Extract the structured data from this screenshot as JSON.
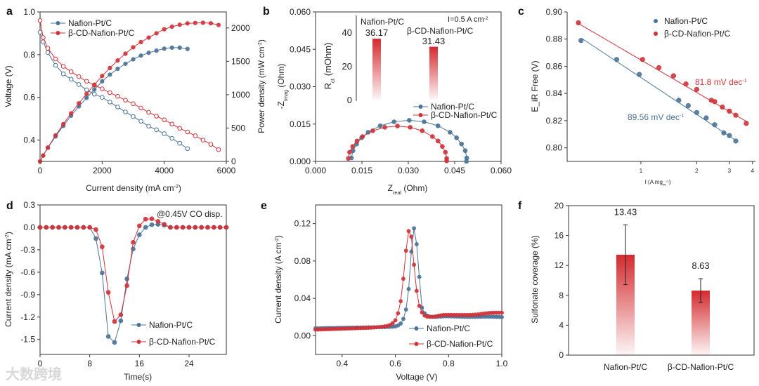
{
  "panel_labels": [
    "a",
    "b",
    "c",
    "d",
    "e",
    "f"
  ],
  "watermark": "大数跨境",
  "colors": {
    "blue": "#4a7397",
    "red": "#d0333a"
  },
  "chart_data": [
    {
      "panel": "a",
      "type": "line",
      "xlabel": [
        "Current density (mA cm",
        {
          "sup": "-2"
        },
        ")"
      ],
      "ylabel": [
        "Voltage (V)"
      ],
      "y2label": [
        "Power density (mW cm",
        {
          "sup": "-2"
        },
        ")"
      ],
      "xlim": [
        0,
        6000
      ],
      "ylim": [
        0.3,
        1.0
      ],
      "y2lim": [
        0,
        2240
      ],
      "xticks": [
        "0",
        "2000",
        "4000",
        "6000"
      ],
      "yticks": [
        "0.4",
        "0.6",
        "0.8",
        "1.0"
      ],
      "y2ticks": [
        "0",
        "500",
        "1000",
        "1500",
        "2000"
      ],
      "legend": "top-left",
      "series": [
        {
          "name": "Nafion-Pt/C",
          "color": "#4a7397",
          "current": [
            0,
            100,
            250,
            500,
            750,
            1000,
            1250,
            1500,
            1750,
            2000,
            2250,
            2500,
            2750,
            3000,
            3250,
            3500,
            3750,
            4000,
            4250,
            4500,
            4750
          ],
          "voltage": [
            0.905,
            0.86,
            0.81,
            0.75,
            0.71,
            0.685,
            0.66,
            0.635,
            0.615,
            0.6,
            0.578,
            0.555,
            0.532,
            0.51,
            0.488,
            0.465,
            0.448,
            0.43,
            0.408,
            0.385,
            0.36
          ],
          "power": [
            0,
            86,
            203,
            375,
            533,
            685,
            825,
            953,
            1076,
            1200,
            1301,
            1388,
            1463,
            1530,
            1586,
            1628,
            1660,
            1690,
            1705,
            1705,
            1685
          ]
        },
        {
          "name": "β-CD-Nafion-Pt/C",
          "color": "#d0333a",
          "current": [
            0,
            100,
            250,
            500,
            750,
            1000,
            1250,
            1500,
            1750,
            2000,
            2250,
            2500,
            2750,
            3000,
            3250,
            3500,
            3750,
            4000,
            4250,
            4500,
            4750,
            5000,
            5250,
            5500,
            5750
          ],
          "voltage": [
            0.96,
            0.88,
            0.83,
            0.78,
            0.745,
            0.72,
            0.697,
            0.675,
            0.657,
            0.64,
            0.622,
            0.605,
            0.587,
            0.57,
            0.55,
            0.53,
            0.512,
            0.495,
            0.475,
            0.455,
            0.438,
            0.42,
            0.4,
            0.38,
            0.355
          ],
          "power": [
            0,
            88,
            208,
            390,
            559,
            720,
            871,
            1013,
            1150,
            1280,
            1400,
            1513,
            1614,
            1710,
            1788,
            1855,
            1920,
            1980,
            2019,
            2048,
            2068,
            2075,
            2078,
            2070,
            2045
          ]
        }
      ]
    },
    {
      "panel": "b",
      "type": "scatter",
      "xlabel": [
        "Z",
        {
          "sub": "real"
        },
        " (Ohm)"
      ],
      "ylabel": [
        "-Z",
        {
          "sub": "Imag"
        },
        " (Ohm)"
      ],
      "xlim": [
        0,
        0.06
      ],
      "ylim": [
        0,
        0.06
      ],
      "xticks": [
        "0.000",
        "0.015",
        "0.030",
        "0.045",
        "0.060"
      ],
      "yticks": [
        "0.000",
        "0.015",
        "0.030",
        "0.045",
        "0.060"
      ],
      "annotation": [
        "I=0.5 A cm",
        {
          "sup": "-2"
        }
      ],
      "legend": "middle-right",
      "series": [
        {
          "name": "Nafion-Pt/C",
          "color": "#4a7397",
          "x": [
            0.0116,
            0.0121,
            0.0133,
            0.0149,
            0.017,
            0.0209,
            0.0254,
            0.0303,
            0.0351,
            0.0396,
            0.0435,
            0.0456,
            0.0472,
            0.0484,
            0.0489,
            0.0488
          ],
          "y": [
            0.0014,
            0.0043,
            0.007,
            0.0095,
            0.0117,
            0.0143,
            0.0159,
            0.0165,
            0.0159,
            0.0143,
            0.0117,
            0.0095,
            0.007,
            0.0043,
            0.0014,
            0.0
          ]
        },
        {
          "name": "β-CD-Nafion-Pt/C",
          "color": "#d0333a",
          "x": [
            0.0106,
            0.011,
            0.012,
            0.0134,
            0.0152,
            0.0185,
            0.0224,
            0.0265,
            0.0306,
            0.0345,
            0.0378,
            0.0396,
            0.041,
            0.042,
            0.0424,
            0.0424
          ],
          "y": [
            0.0012,
            0.0037,
            0.006,
            0.0082,
            0.01,
            0.0123,
            0.0137,
            0.0142,
            0.0137,
            0.0123,
            0.01,
            0.0082,
            0.006,
            0.0037,
            0.0012,
            0.0002
          ]
        }
      ],
      "inset": {
        "type": "bar",
        "ylabel": [
          "R",
          {
            "sub": "ct"
          },
          " (mOhm)"
        ],
        "ylim": [
          0,
          50
        ],
        "yticks": [
          "0",
          "20",
          "40"
        ],
        "categories": [
          "Nafion-Pt/C",
          "β-CD-Nafion-Pt/C"
        ],
        "values": [
          36.17,
          31.43
        ],
        "value_labels": [
          "36.17",
          "31.43"
        ]
      }
    },
    {
      "panel": "c",
      "type": "scatter",
      "xlabel": [
        "I (A mg",
        {
          "sub": "Pt"
        },
        {
          "sup": "-1"
        },
        ")"
      ],
      "ylabel": [
        "E_iR Free (V)"
      ],
      "xscale": "log",
      "xlim": [
        0.4,
        4.15
      ],
      "ylim": [
        0.79,
        0.9
      ],
      "xticks": [
        "1",
        "2",
        "3",
        "4"
      ],
      "yticks": [
        "0.80",
        "0.82",
        "0.84",
        "0.86",
        "0.88",
        "0.90"
      ],
      "legend": "top-right",
      "series": [
        {
          "name": "Nafion-Pt/C",
          "color": "#4a7397",
          "x": [
            0.475,
            0.74,
            0.98,
            1.6,
            1.8,
            2.0,
            2.25,
            2.5,
            2.8,
            3.0,
            3.25
          ],
          "y": [
            0.879,
            0.865,
            0.854,
            0.835,
            0.831,
            0.826,
            0.822,
            0.817,
            0.811,
            0.809,
            0.805
          ],
          "fit": {
            "x": [
              0.48,
              3.25
            ],
            "y": [
              0.8805,
              0.8055
            ]
          },
          "slope_label": [
            "89.56 mV dec",
            {
              "sup": "-1"
            }
          ]
        },
        {
          "name": "β-CD-Nafion-Pt/C",
          "color": "#d0333a",
          "x": [
            0.46,
            1.02,
            1.25,
            1.5,
            1.75,
            2.0,
            2.4,
            2.5,
            2.75,
            3.0,
            3.25,
            3.7
          ],
          "y": [
            0.892,
            0.865,
            0.859,
            0.853,
            0.847,
            0.843,
            0.835,
            0.834,
            0.83,
            0.827,
            0.824,
            0.818
          ],
          "fit": {
            "x": [
              0.46,
              3.75
            ],
            "y": [
              0.8915,
              0.819
            ]
          },
          "slope_label": [
            "81.8 mV dec",
            {
              "sup": "-1"
            }
          ]
        }
      ]
    },
    {
      "panel": "d",
      "type": "line",
      "xlabel": [
        "Time(s)"
      ],
      "ylabel": [
        "Current density (mA cm",
        {
          "sup": "-2"
        },
        ")"
      ],
      "xlim": [
        0,
        30
      ],
      "ylim": [
        -1.7,
        0.3
      ],
      "xticks": [
        "0",
        "8",
        "16",
        "24"
      ],
      "yticks": [
        "0.3",
        "0.0",
        "-0.3",
        "-0.6",
        "-0.9",
        "-1.2",
        "-1.5"
      ],
      "annotation": [
        "@0.45V CO disp."
      ],
      "legend": "bottom-right",
      "x": [
        0,
        1,
        2,
        3,
        4,
        5,
        6,
        7,
        8,
        9,
        10,
        11,
        12,
        13,
        14,
        15,
        16,
        17,
        18,
        19,
        20,
        21,
        22,
        23,
        24,
        25,
        26,
        27,
        28,
        29,
        30
      ],
      "series": [
        {
          "name": "Nafion-Pt/C",
          "color": "#4a7397",
          "y": [
            0,
            0,
            0,
            0,
            0,
            0,
            0,
            0,
            0,
            -0.15,
            -0.61,
            -1.46,
            -1.54,
            -1.25,
            -0.69,
            -0.29,
            -0.1,
            0.0,
            0.035,
            0.04,
            0.03,
            0,
            0,
            0,
            0,
            0,
            0,
            0,
            0,
            0,
            0
          ]
        },
        {
          "name": "β-CD-Nafion-Pt/C",
          "color": "#d0333a",
          "y": [
            0,
            0,
            0,
            0,
            0,
            0,
            0,
            0,
            0,
            -0.03,
            -0.26,
            -0.87,
            -1.26,
            -1.17,
            -0.78,
            -0.2,
            0.02,
            0.11,
            0.115,
            0.08,
            0.04,
            0,
            0,
            0,
            0,
            0,
            0,
            0,
            0,
            0,
            0
          ]
        }
      ]
    },
    {
      "panel": "e",
      "type": "line",
      "xlabel": [
        "Voltage (V)"
      ],
      "ylabel": [
        "Current density (A cm",
        {
          "sup": "-2"
        },
        ")"
      ],
      "xlim": [
        0.3,
        1.0
      ],
      "ylim": [
        -0.02,
        0.14
      ],
      "xticks": [
        "0.4",
        "0.6",
        "0.8",
        "1.0"
      ],
      "yticks": [
        "0.00",
        "0.04",
        "0.08",
        "0.12"
      ],
      "x_start": 0.3,
      "x_step": 0.01,
      "legend": "bottom-right",
      "series": [
        {
          "name": "Nafion-Pt/C",
          "color": "#4a7397",
          "y": [
            0.008,
            0.008,
            0.0081,
            0.0081,
            0.0082,
            0.0082,
            0.0083,
            0.0083,
            0.0084,
            0.0084,
            0.0085,
            0.0085,
            0.0086,
            0.0086,
            0.0087,
            0.0087,
            0.0088,
            0.0088,
            0.0089,
            0.0089,
            0.009,
            0.009,
            0.0091,
            0.0091,
            0.0092,
            0.0092,
            0.0093,
            0.0094,
            0.0095,
            0.0097,
            0.01,
            0.011,
            0.013,
            0.018,
            0.028,
            0.05,
            0.09,
            0.115,
            0.098,
            0.063,
            0.03,
            0.024,
            0.0215,
            0.0205,
            0.0202,
            0.0202,
            0.0203,
            0.0205,
            0.0207,
            0.0208,
            0.0208,
            0.0207,
            0.0206,
            0.0205,
            0.0204,
            0.0203,
            0.0202,
            0.0202,
            0.0202,
            0.0202,
            0.0202,
            0.0203,
            0.0203,
            0.0204,
            0.0204,
            0.0204,
            0.0204,
            0.0203,
            0.0202,
            0.0201,
            0.02
          ]
        },
        {
          "name": "β-CD-Nafion-Pt/C",
          "color": "#d0333a",
          "y": [
            0.0065,
            0.0066,
            0.0067,
            0.0068,
            0.0069,
            0.007,
            0.0071,
            0.0072,
            0.0073,
            0.0074,
            0.0075,
            0.0076,
            0.0077,
            0.0078,
            0.0079,
            0.008,
            0.0081,
            0.0082,
            0.0083,
            0.0084,
            0.0085,
            0.0087,
            0.0089,
            0.0091,
            0.0093,
            0.0096,
            0.01,
            0.0105,
            0.0115,
            0.0135,
            0.0165,
            0.024,
            0.037,
            0.061,
            0.091,
            0.112,
            0.106,
            0.076,
            0.048,
            0.032,
            0.025,
            0.0215,
            0.0205,
            0.0202,
            0.0203,
            0.0206,
            0.0212,
            0.0218,
            0.0222,
            0.0223,
            0.0223,
            0.0223,
            0.0222,
            0.0222,
            0.0222,
            0.0222,
            0.0222,
            0.0222,
            0.0223,
            0.0224,
            0.0226,
            0.0228,
            0.0232,
            0.0236,
            0.024,
            0.0243,
            0.0245,
            0.0246,
            0.0246,
            0.0246,
            0.0246
          ]
        }
      ]
    },
    {
      "panel": "f",
      "type": "bar",
      "ylabel": [
        "Sulfonate coverage (%)"
      ],
      "ylim": [
        0,
        20
      ],
      "yticks": [
        "0",
        "4",
        "8",
        "12",
        "16",
        "20"
      ],
      "categories": [
        "Nafion-Pt/C",
        "β-CD-Nafion-Pt/C"
      ],
      "values": [
        13.43,
        8.63
      ],
      "value_labels": [
        "13.43",
        "8.63"
      ],
      "errors": [
        4.0,
        1.6
      ]
    }
  ]
}
